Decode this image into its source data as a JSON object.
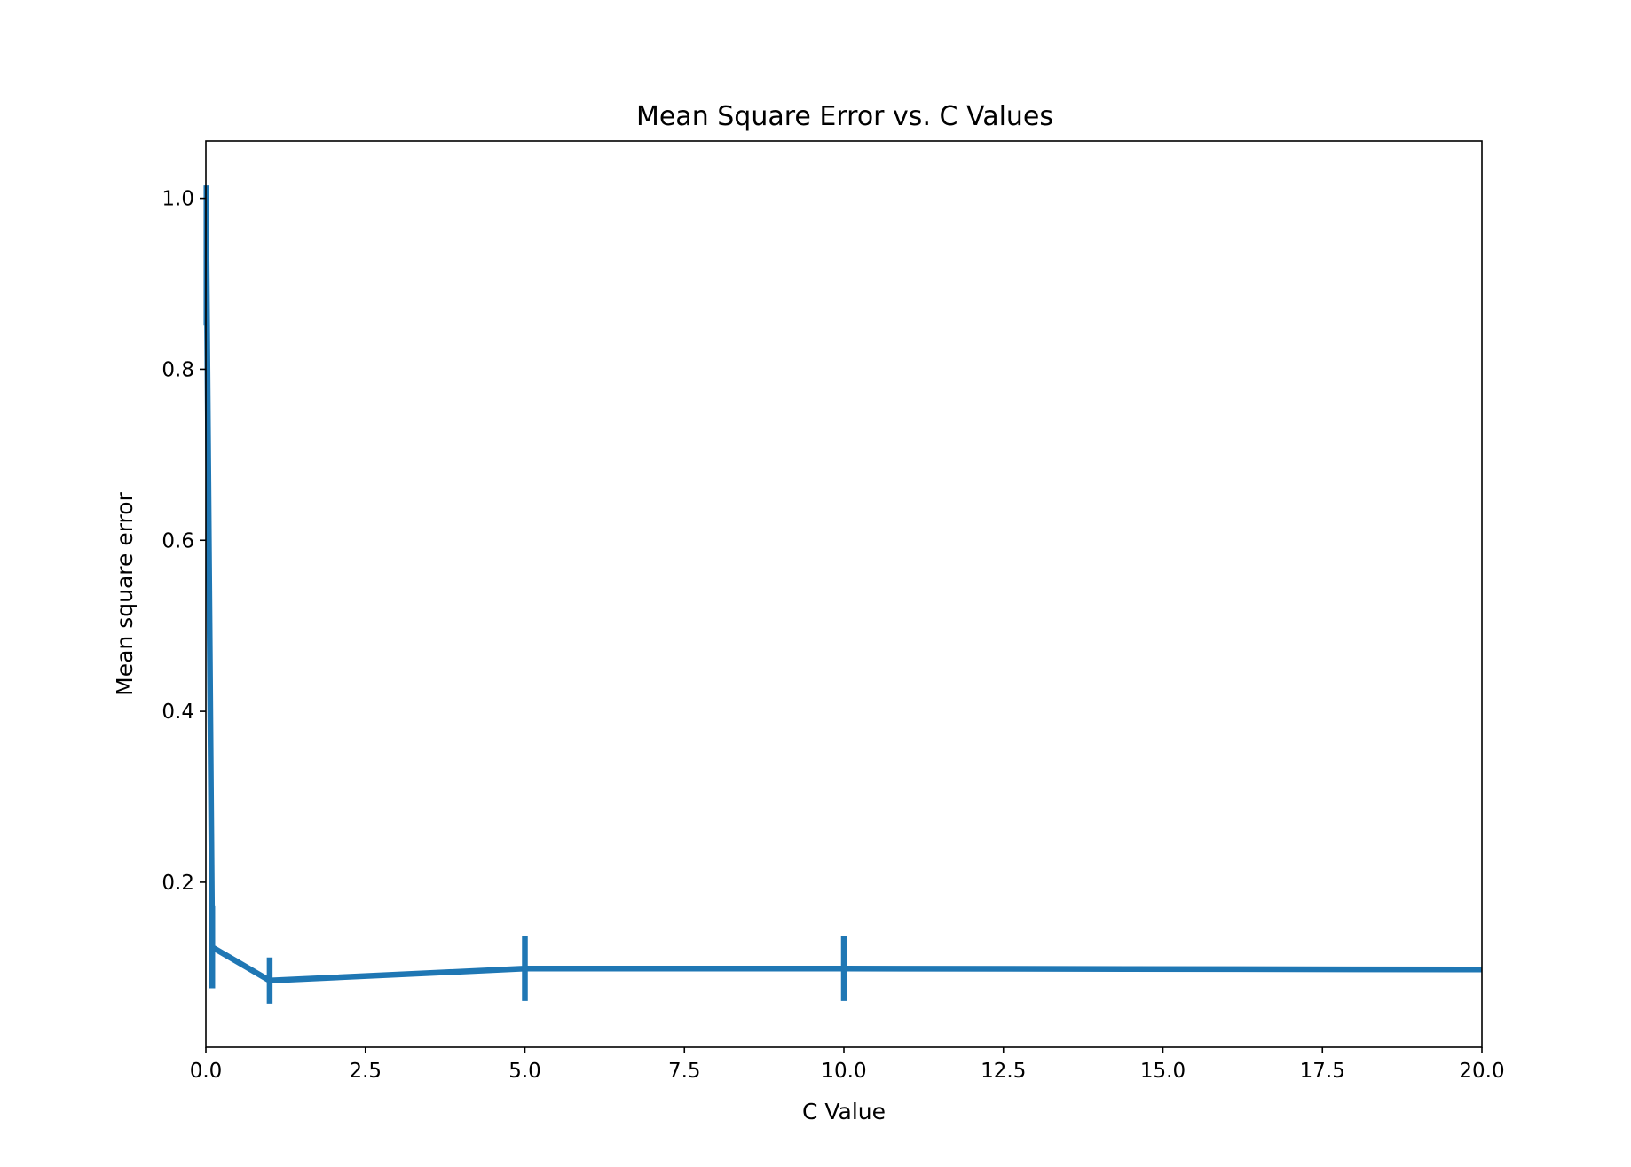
{
  "chart_data": {
    "type": "line",
    "title": "Mean Square Error vs. C Values",
    "xlabel": "C Value",
    "ylabel": "Mean square error",
    "xlim": [
      0,
      20
    ],
    "ylim": [
      0.007,
      1.067
    ],
    "xticks": [
      "0.0",
      "2.5",
      "5.0",
      "7.5",
      "10.0",
      "12.5",
      "15.0",
      "17.5",
      "20.0"
    ],
    "yticks": [
      "0.2",
      "0.4",
      "0.6",
      "0.8",
      "1.0"
    ],
    "grid": false,
    "color": "#1f77b4",
    "series": [
      {
        "x": [
          0.01,
          0.1,
          1,
          5,
          10,
          20
        ],
        "y": [
          0.933,
          0.124,
          0.085,
          0.099,
          0.099,
          0.098
        ],
        "err": [
          0.082,
          0.048,
          0.027,
          0.038,
          0.038,
          0.0
        ]
      }
    ]
  }
}
